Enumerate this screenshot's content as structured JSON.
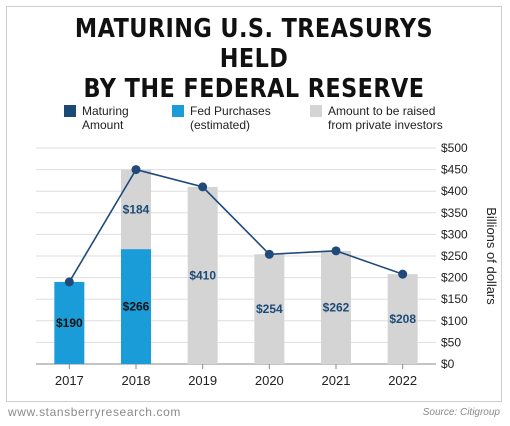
{
  "title_line1": "MATURING U.S. TREASURYS HELD",
  "title_line2": "BY THE FEDERAL RESERVE",
  "footer_url": "www.stansberryresearch.com",
  "footer_source": "Source: Citigroup",
  "colors": {
    "maturing": "#1c4a77",
    "fed": "#1a9cd8",
    "private": "#d4d4d4",
    "line": "#1f4a7a"
  },
  "chart_data": {
    "type": "bar",
    "categories": [
      "2017",
      "2018",
      "2019",
      "2020",
      "2021",
      "2022"
    ],
    "series": [
      {
        "name": "Maturing Amount",
        "kind": "line",
        "values": [
          190,
          450,
          410,
          254,
          262,
          208
        ]
      },
      {
        "name": "Fed Purchases (estimated)",
        "kind": "bar-stack",
        "values": [
          190,
          266,
          0,
          0,
          0,
          0
        ]
      },
      {
        "name": "Amount to be raised from private investors",
        "kind": "bar-stack",
        "values": [
          0,
          184,
          410,
          254,
          262,
          208
        ]
      }
    ],
    "legend": [
      {
        "line1": "Maturing",
        "line2": "Amount"
      },
      {
        "line1": "Fed Purchases",
        "line2": "(estimated)"
      },
      {
        "line1": "Amount to be raised",
        "line2": "from private investors"
      }
    ],
    "data_labels": [
      "$190",
      "$266",
      "$184",
      "$410",
      "$254",
      "$262",
      "$208"
    ],
    "y_ticks": [
      "$0",
      "$50",
      "$100",
      "$150",
      "$200",
      "$250",
      "$300",
      "$350",
      "$400",
      "$450",
      "$500"
    ],
    "ylim": [
      0,
      500
    ],
    "ylabel": "Billions of dollars",
    "xlabel": "",
    "grid": true,
    "legend_position": "top"
  }
}
